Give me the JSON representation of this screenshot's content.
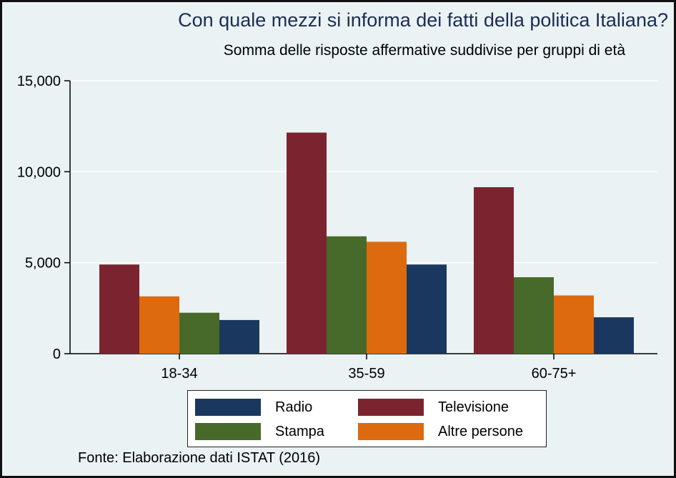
{
  "chart_data": {
    "type": "bar",
    "title": "Con quale mezzi si informa dei fatti della politica Italiana?",
    "subtitle": "Somma delle risposte affermative suddivise per gruppi di età",
    "categories": [
      "18-34",
      "35-59",
      "60-75+"
    ],
    "series": [
      {
        "name": "Televisione",
        "color": "#7b2430",
        "values": [
          4900,
          12150,
          9150
        ]
      },
      {
        "name": "Stampa",
        "color": "#476a2a",
        "values": [
          2250,
          6450,
          4200
        ]
      },
      {
        "name": "Altre persone",
        "color": "#dd6a0e",
        "values": [
          3150,
          6150,
          3200
        ]
      },
      {
        "name": "Radio",
        "color": "#1a385f",
        "values": [
          1850,
          4900,
          2000
        ]
      }
    ],
    "bar_order": [
      [
        "Televisione",
        "Altre persone",
        "Stampa",
        "Radio"
      ],
      [
        "Televisione",
        "Stampa",
        "Altre persone",
        "Radio"
      ],
      [
        "Televisione",
        "Stampa",
        "Altre persone",
        "Radio"
      ]
    ],
    "y_ticks": [
      0,
      5000,
      10000,
      15000
    ],
    "y_tick_labels": [
      "0",
      "5,000",
      "10,000",
      "15,000"
    ],
    "ylim": [
      0,
      15000
    ],
    "grid": true,
    "xlabel": "",
    "ylabel": "",
    "legend": {
      "position": "bottom",
      "items": [
        {
          "name": "Radio",
          "color": "#1a385f"
        },
        {
          "name": "Televisione",
          "color": "#7b2430"
        },
        {
          "name": "Stampa",
          "color": "#476a2a"
        },
        {
          "name": "Altre persone",
          "color": "#dd6a0e"
        }
      ]
    },
    "source": "Fonte: Elaborazione dati ISTAT (2016)"
  },
  "colors": {
    "background": "#eaf2f3",
    "gridline": "#ffffff",
    "title": "#1c2d55"
  }
}
